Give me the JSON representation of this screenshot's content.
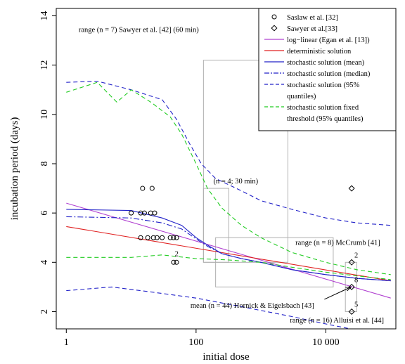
{
  "chart_data": {
    "type": "line",
    "xlabel": "initial dose",
    "ylabel": "incubation period (days)",
    "x_scale": "log",
    "xlim": [
      0.7,
      120000
    ],
    "ylim": [
      1.3,
      14.3
    ],
    "x_ticks": [
      1,
      100,
      10000
    ],
    "x_tick_labels": [
      "1",
      "100",
      "10 000"
    ],
    "y_ticks": [
      2,
      4,
      6,
      8,
      10,
      12,
      14
    ],
    "y_tick_labels": [
      "2",
      "4",
      "6",
      "8",
      "10",
      "12",
      "14"
    ],
    "legend": {
      "position": "top-right",
      "entries": [
        {
          "label": "Saslaw et al. [32]",
          "marker": "circle",
          "color": "#000000"
        },
        {
          "label": "Sawyer et al.[33]",
          "marker": "diamond",
          "color": "#000000"
        },
        {
          "label": "log−linear (Egan et al. [13])",
          "line": "solid",
          "color": "#b040d0"
        },
        {
          "label": "deterministic solution",
          "line": "solid",
          "color": "#e02020"
        },
        {
          "label": "stochastic solution (mean)",
          "line": "solid",
          "color": "#2020c8"
        },
        {
          "label": "stochastic solution (median)",
          "line": "dashdot",
          "color": "#2020c8"
        },
        {
          "label": "stochastic solution (95%",
          "label_cont": "quantiles)",
          "line": "dashed",
          "color": "#2020c8"
        },
        {
          "label": "stochastic solution fixed",
          "label_cont": "threshold (95% quantiles)",
          "line": "dashed",
          "color": "#22cc22"
        }
      ]
    },
    "series": [
      {
        "name": "log−linear (Egan et al. [13])",
        "style": "solid",
        "color": "#b040d0",
        "points": [
          [
            1,
            6.4
          ],
          [
            100000,
            2.55
          ]
        ]
      },
      {
        "name": "deterministic solution",
        "style": "solid",
        "color": "#e02020",
        "points": [
          [
            1,
            5.45
          ],
          [
            100000,
            3.25
          ]
        ]
      },
      {
        "name": "stochastic solution (mean)",
        "style": "solid",
        "color": "#2020c8",
        "points": [
          [
            1,
            6.15
          ],
          [
            10,
            6.1
          ],
          [
            30,
            5.8
          ],
          [
            60,
            5.5
          ],
          [
            100,
            5.0
          ],
          [
            150,
            4.7
          ],
          [
            250,
            4.35
          ],
          [
            500,
            4.15
          ],
          [
            1000,
            4.0
          ],
          [
            3000,
            3.7
          ],
          [
            10000,
            3.5
          ],
          [
            30000,
            3.35
          ],
          [
            100000,
            3.25
          ]
        ]
      },
      {
        "name": "stochastic solution (median)",
        "style": "dashdot",
        "color": "#2020c8",
        "points": [
          [
            1,
            5.85
          ],
          [
            10,
            5.8
          ],
          [
            30,
            5.6
          ],
          [
            60,
            5.35
          ],
          [
            100,
            4.95
          ],
          [
            150,
            4.65
          ],
          [
            250,
            4.35
          ],
          [
            500,
            4.15
          ],
          [
            1000,
            4.0
          ],
          [
            3000,
            3.7
          ],
          [
            10000,
            3.5
          ],
          [
            30000,
            3.35
          ],
          [
            100000,
            3.25
          ]
        ]
      },
      {
        "name": "stochastic solution (95% quantiles) upper",
        "style": "dashed",
        "color": "#2020c8",
        "points": [
          [
            1,
            11.3
          ],
          [
            3,
            11.35
          ],
          [
            10,
            11.0
          ],
          [
            30,
            10.6
          ],
          [
            50,
            9.8
          ],
          [
            80,
            8.8
          ],
          [
            120,
            8.0
          ],
          [
            200,
            7.4
          ],
          [
            500,
            6.9
          ],
          [
            1000,
            6.5
          ],
          [
            3000,
            6.15
          ],
          [
            10000,
            5.8
          ],
          [
            30000,
            5.6
          ],
          [
            100000,
            5.5
          ]
        ]
      },
      {
        "name": "stochastic solution (95% quantiles) lower",
        "style": "dashed",
        "color": "#2020c8",
        "points": [
          [
            1,
            2.85
          ],
          [
            5,
            3.0
          ],
          [
            20,
            2.8
          ],
          [
            100,
            2.55
          ],
          [
            500,
            2.2
          ],
          [
            3000,
            1.8
          ],
          [
            10000,
            1.5
          ],
          [
            30000,
            1.25
          ],
          [
            100000,
            1.05
          ]
        ]
      },
      {
        "name": "stochastic solution fixed threshold (95% quantiles) upper",
        "style": "dashed",
        "color": "#22cc22",
        "points": [
          [
            1,
            10.9
          ],
          [
            3,
            11.3
          ],
          [
            6,
            10.5
          ],
          [
            10,
            11.0
          ],
          [
            20,
            10.5
          ],
          [
            40,
            9.9
          ],
          [
            60,
            9.2
          ],
          [
            100,
            8.0
          ],
          [
            150,
            7.0
          ],
          [
            250,
            6.2
          ],
          [
            500,
            5.5
          ],
          [
            1000,
            5.0
          ],
          [
            3000,
            4.4
          ],
          [
            10000,
            4.0
          ],
          [
            30000,
            3.7
          ],
          [
            100000,
            3.5
          ]
        ]
      },
      {
        "name": "stochastic solution fixed threshold (95% quantiles) lower",
        "style": "dashed",
        "color": "#22cc22",
        "points": [
          [
            1,
            4.2
          ],
          [
            10,
            4.2
          ],
          [
            30,
            4.3
          ],
          [
            100,
            4.15
          ],
          [
            300,
            4.1
          ],
          [
            1000,
            4.0
          ],
          [
            3000,
            3.8
          ],
          [
            10000,
            3.6
          ],
          [
            30000,
            3.45
          ],
          [
            100000,
            3.3
          ]
        ]
      }
    ],
    "saslaw_points": [
      {
        "x": 10,
        "y": 6.0
      },
      {
        "x": 14,
        "y": 6.0
      },
      {
        "x": 16,
        "y": 6.0
      },
      {
        "x": 20,
        "y": 6.0
      },
      {
        "x": 23,
        "y": 6.0
      },
      {
        "x": 15,
        "y": 7.0
      },
      {
        "x": 21,
        "y": 7.0
      },
      {
        "x": 14,
        "y": 5.0
      },
      {
        "x": 18,
        "y": 5.0
      },
      {
        "x": 22,
        "y": 5.0
      },
      {
        "x": 25,
        "y": 5.0
      },
      {
        "x": 30,
        "y": 5.0
      },
      {
        "x": 40,
        "y": 5.0
      },
      {
        "x": 50,
        "y": 5.0
      },
      {
        "x": 45,
        "y": 5.0
      },
      {
        "x": 45,
        "y": 4.0
      },
      {
        "x": 50,
        "y": 4.0
      }
    ],
    "sawyer_points": [
      {
        "x": 25000,
        "y": 7.0
      },
      {
        "x": 25000,
        "y": 4.0
      },
      {
        "x": 25000,
        "y": 3.0
      },
      {
        "x": 25000,
        "y": 2.0
      }
    ],
    "rects": [
      {
        "x0": 130,
        "x1": 2600,
        "y0": 4.0,
        "y1": 12.2,
        "color": "#b0b0b0"
      },
      {
        "x0": 130,
        "x1": 320,
        "y0": 4.0,
        "y1": 7.0,
        "color": "#b0b0b0"
      },
      {
        "x0": 200,
        "x1": 13000,
        "y0": 3.0,
        "y1": 5.0,
        "color": "#b0b0b0"
      },
      {
        "x0": 20000,
        "x1": 30000,
        "y0": 2.0,
        "y1": 4.0,
        "color": "#b0b0b0"
      }
    ],
    "annotations": [
      {
        "text": "range (n = 7) Sawyer et al. [42] (60 min)",
        "x": 1.55,
        "y": 13.35
      },
      {
        "text": "(n = 4; 30 min)",
        "x": 185,
        "y": 7.2
      },
      {
        "text": "range (n = 8) McCrumb [41]",
        "x": 3400,
        "y": 4.7
      },
      {
        "text": "mean (n = 44) Hornick & Eigelsbach [43]",
        "x": 82,
        "y": 2.15
      },
      {
        "text": "range (n = 16) Alluisi et al. [44]",
        "x": 2800,
        "y": 1.55
      },
      {
        "text": "2",
        "x": 47,
        "y": 4.25
      },
      {
        "text": "2",
        "x": 27500,
        "y": 4.2
      },
      {
        "text": "8",
        "x": 27500,
        "y": 3.2
      },
      {
        "text": "5",
        "x": 27500,
        "y": 2.2
      }
    ],
    "arrow": {
      "from": [
        9500,
        2.5
      ],
      "to": [
        24500,
        3.0
      ]
    }
  }
}
